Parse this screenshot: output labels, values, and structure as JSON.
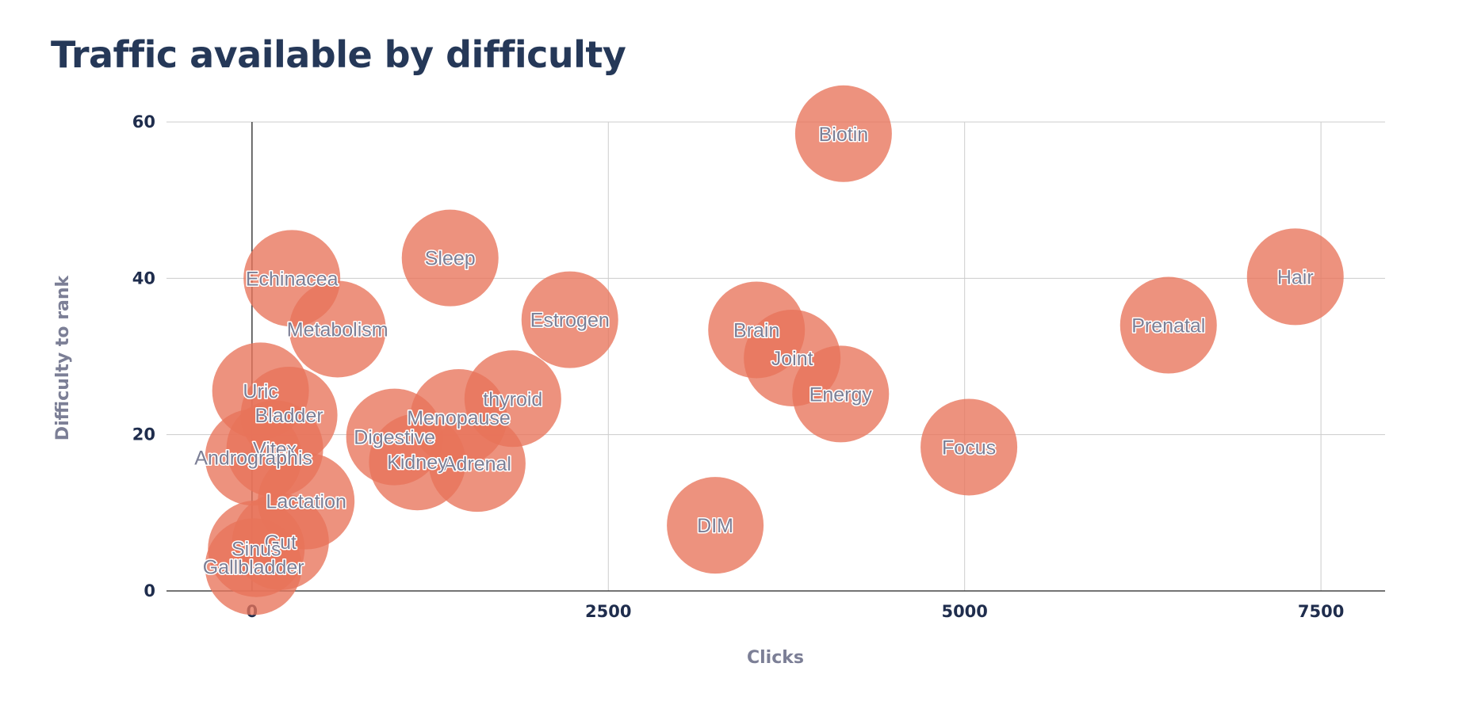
{
  "chart_data": {
    "type": "scatter",
    "title": "Traffic available by difficulty",
    "xlabel": "Clicks",
    "ylabel": "Difficulty to rank",
    "xlim": [
      -600,
      7950
    ],
    "ylim": [
      0,
      60
    ],
    "xticks": [
      0,
      2500,
      5000,
      7500
    ],
    "yticks": [
      0,
      20,
      40,
      60
    ],
    "grid": true,
    "bubble_color": "#e8735a",
    "label_color": "#7c7f96",
    "points": [
      {
        "label": "Biotin",
        "x": 4150,
        "y": 58.5
      },
      {
        "label": "Hair",
        "x": 7320,
        "y": 40.2
      },
      {
        "label": "Prenatal",
        "x": 6430,
        "y": 34.0
      },
      {
        "label": "Sleep",
        "x": 1390,
        "y": 42.6
      },
      {
        "label": "Echinacea",
        "x": 280,
        "y": 40.0
      },
      {
        "label": "Metabolism",
        "x": 600,
        "y": 33.5
      },
      {
        "label": "Estrogen",
        "x": 2230,
        "y": 34.7
      },
      {
        "label": "Brain",
        "x": 3540,
        "y": 33.4
      },
      {
        "label": "Joint",
        "x": 3790,
        "y": 29.8
      },
      {
        "label": "Energy",
        "x": 4130,
        "y": 25.2
      },
      {
        "label": "Focus",
        "x": 5030,
        "y": 18.4
      },
      {
        "label": "DIM",
        "x": 3250,
        "y": 8.4
      },
      {
        "label": "thyroid",
        "x": 1830,
        "y": 24.6
      },
      {
        "label": "Menopause",
        "x": 1450,
        "y": 22.2
      },
      {
        "label": "Adrenal",
        "x": 1580,
        "y": 16.3
      },
      {
        "label": "Digestive",
        "x": 1000,
        "y": 19.7
      },
      {
        "label": "Kidney",
        "x": 1160,
        "y": 16.5
      },
      {
        "label": "Uric",
        "x": 60,
        "y": 25.6
      },
      {
        "label": "Bladder",
        "x": 260,
        "y": 22.5
      },
      {
        "label": "Vitex",
        "x": 160,
        "y": 18.2
      },
      {
        "label": "Andrographis",
        "x": 10,
        "y": 17.1
      },
      {
        "label": "Lactation",
        "x": 380,
        "y": 11.5
      },
      {
        "label": "Gut",
        "x": 200,
        "y": 6.3
      },
      {
        "label": "Sinus",
        "x": 30,
        "y": 5.4
      },
      {
        "label": "Gallbladder",
        "x": 10,
        "y": 3.1
      }
    ]
  }
}
